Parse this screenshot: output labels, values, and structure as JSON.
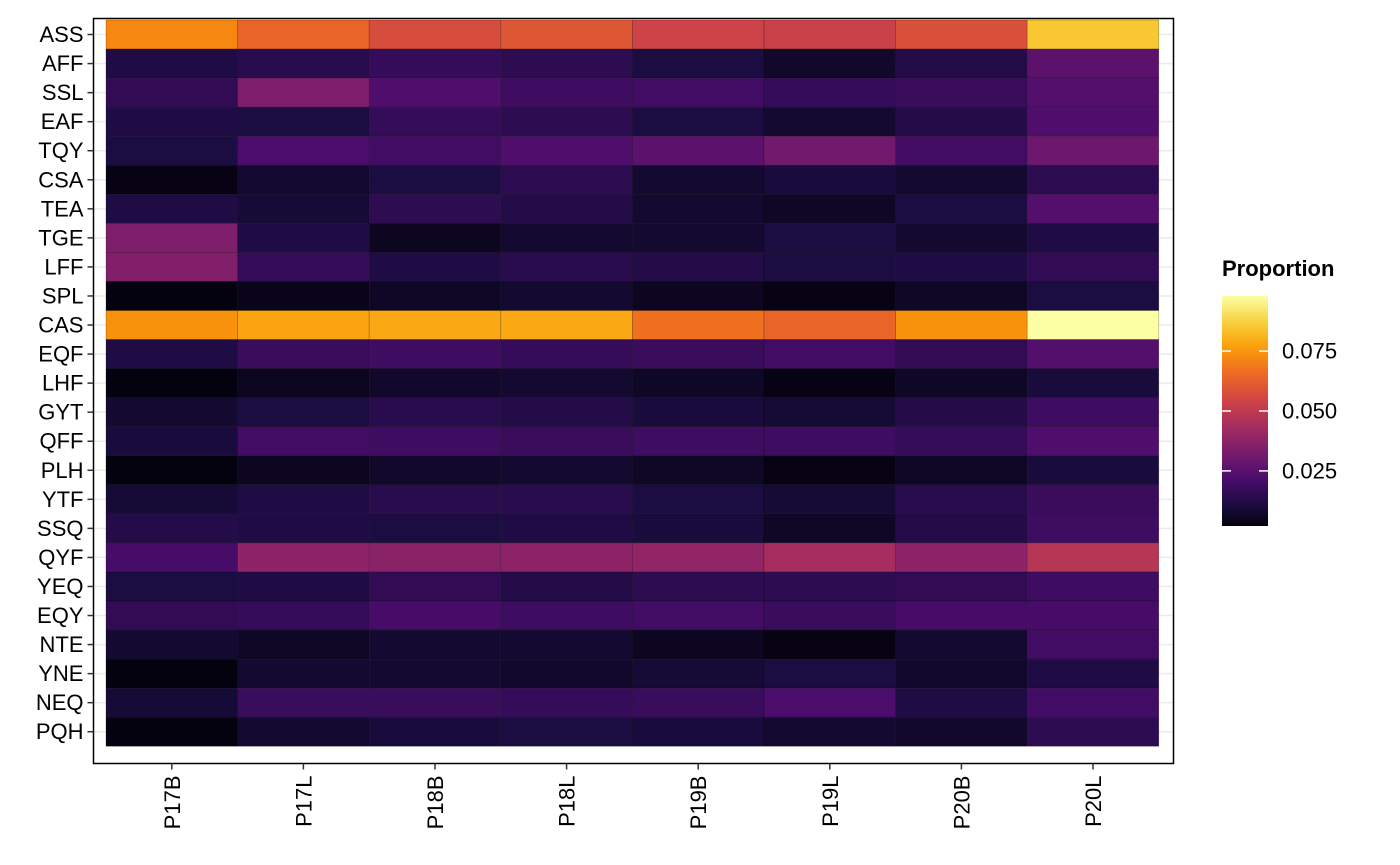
{
  "chart_data": {
    "type": "heatmap",
    "title": "",
    "xlabel": "",
    "ylabel": "",
    "x_categories": [
      "P17B",
      "P17L",
      "P18B",
      "P18L",
      "P19B",
      "P19L",
      "P20B",
      "P20L"
    ],
    "y_categories": [
      "ASS",
      "AFF",
      "SSL",
      "EAF",
      "TQY",
      "CSA",
      "TEA",
      "TGE",
      "LFF",
      "SPL",
      "CAS",
      "EQF",
      "LHF",
      "GYT",
      "QFF",
      "PLH",
      "YTF",
      "SSQ",
      "QYF",
      "YEQ",
      "EQY",
      "NTE",
      "YNE",
      "NEQ",
      "PQH"
    ],
    "values": [
      [
        0.072,
        0.064,
        0.057,
        0.06,
        0.054,
        0.053,
        0.058,
        0.085
      ],
      [
        0.012,
        0.014,
        0.017,
        0.015,
        0.011,
        0.007,
        0.013,
        0.026
      ],
      [
        0.016,
        0.034,
        0.023,
        0.019,
        0.02,
        0.017,
        0.018,
        0.024
      ],
      [
        0.012,
        0.011,
        0.017,
        0.015,
        0.011,
        0.008,
        0.013,
        0.023
      ],
      [
        0.011,
        0.022,
        0.02,
        0.023,
        0.026,
        0.031,
        0.02,
        0.03
      ],
      [
        0.003,
        0.008,
        0.011,
        0.015,
        0.008,
        0.01,
        0.008,
        0.015
      ],
      [
        0.012,
        0.009,
        0.015,
        0.013,
        0.008,
        0.006,
        0.011,
        0.024
      ],
      [
        0.034,
        0.012,
        0.005,
        0.008,
        0.008,
        0.011,
        0.008,
        0.012
      ],
      [
        0.035,
        0.017,
        0.012,
        0.014,
        0.013,
        0.011,
        0.012,
        0.016
      ],
      [
        0.002,
        0.004,
        0.006,
        0.008,
        0.005,
        0.003,
        0.006,
        0.011
      ],
      [
        0.074,
        0.078,
        0.079,
        0.079,
        0.067,
        0.064,
        0.074,
        0.098
      ],
      [
        0.012,
        0.018,
        0.019,
        0.017,
        0.018,
        0.02,
        0.016,
        0.024
      ],
      [
        0.002,
        0.005,
        0.007,
        0.008,
        0.006,
        0.003,
        0.006,
        0.01
      ],
      [
        0.008,
        0.011,
        0.014,
        0.013,
        0.01,
        0.009,
        0.013,
        0.019
      ],
      [
        0.01,
        0.02,
        0.019,
        0.018,
        0.019,
        0.019,
        0.017,
        0.023
      ],
      [
        0.002,
        0.005,
        0.007,
        0.008,
        0.006,
        0.003,
        0.006,
        0.01
      ],
      [
        0.009,
        0.012,
        0.014,
        0.014,
        0.011,
        0.009,
        0.014,
        0.018
      ],
      [
        0.013,
        0.012,
        0.011,
        0.012,
        0.01,
        0.006,
        0.013,
        0.019
      ],
      [
        0.021,
        0.038,
        0.037,
        0.038,
        0.039,
        0.044,
        0.038,
        0.048
      ],
      [
        0.011,
        0.012,
        0.016,
        0.013,
        0.015,
        0.015,
        0.016,
        0.019
      ],
      [
        0.016,
        0.017,
        0.021,
        0.019,
        0.02,
        0.018,
        0.021,
        0.021
      ],
      [
        0.008,
        0.006,
        0.008,
        0.008,
        0.005,
        0.003,
        0.008,
        0.02
      ],
      [
        0.002,
        0.008,
        0.008,
        0.007,
        0.009,
        0.011,
        0.007,
        0.012
      ],
      [
        0.009,
        0.018,
        0.018,
        0.017,
        0.018,
        0.022,
        0.012,
        0.02
      ],
      [
        0.002,
        0.008,
        0.01,
        0.011,
        0.01,
        0.008,
        0.007,
        0.015
      ]
    ],
    "color_scale": {
      "name": "inferno",
      "domain": [
        0.0,
        0.098
      ],
      "stops": [
        "#000004",
        "#1b0c41",
        "#4a0c6b",
        "#781c6d",
        "#a52c60",
        "#cf4446",
        "#ed6925",
        "#fb9b06",
        "#f7d13d",
        "#fcffa4"
      ]
    },
    "legend": {
      "title": "Proportion",
      "ticks": [
        0.025,
        0.05,
        0.075
      ],
      "tick_labels": [
        "0.025",
        "0.050",
        "0.075"
      ],
      "range": [
        0.002,
        0.098
      ],
      "position": "right"
    },
    "grid": true
  }
}
